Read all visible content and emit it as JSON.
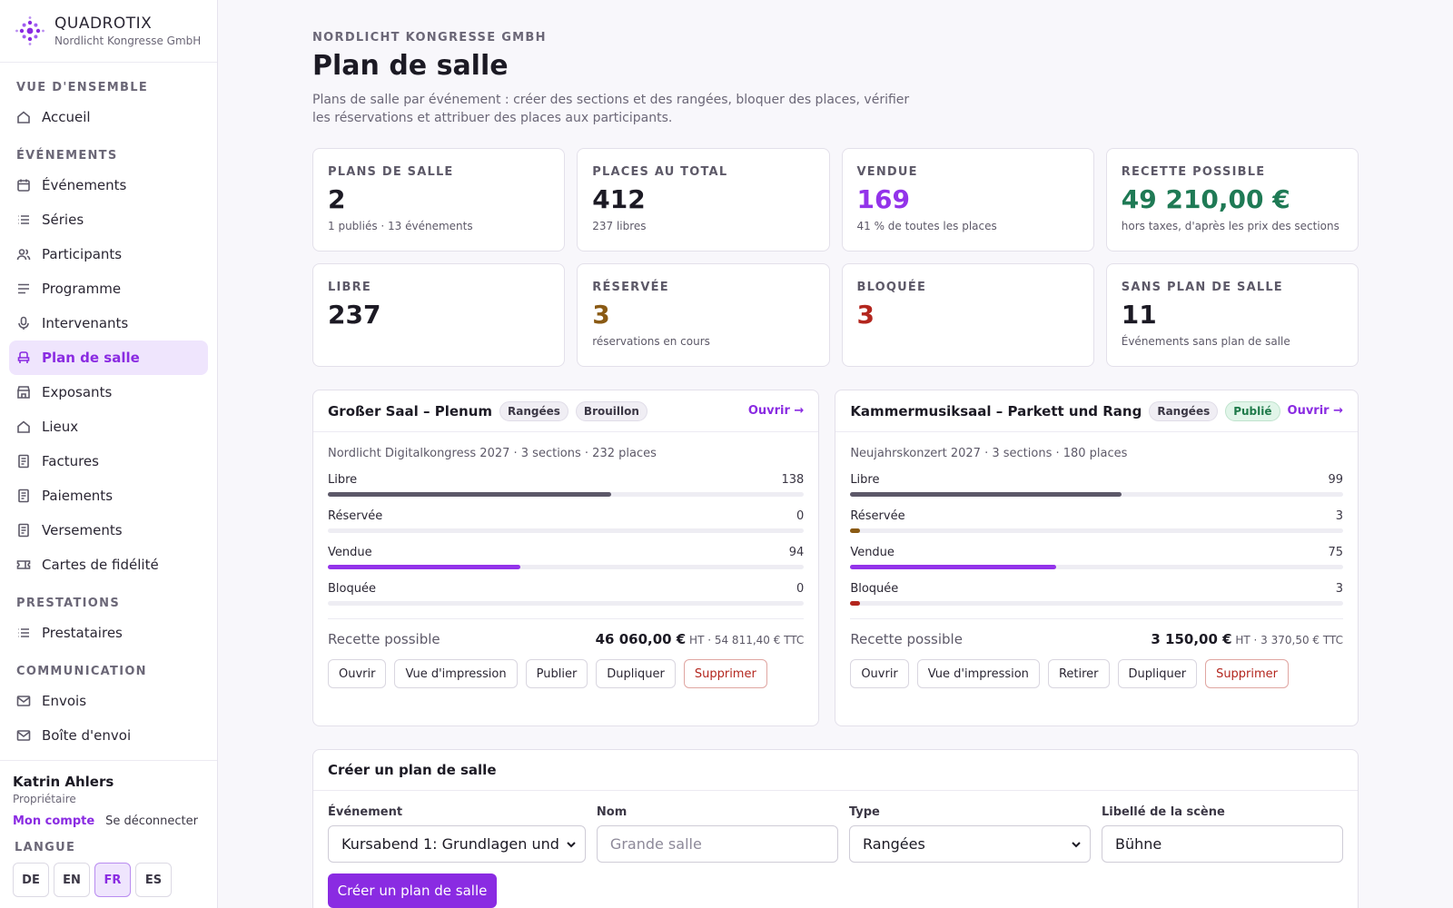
{
  "brand": {
    "name": "QUADROTIX",
    "org": "Nordlicht Kongresse GmbH",
    "logo_icon": "dots-cluster-logo"
  },
  "nav": {
    "sections": [
      {
        "title": "VUE D'ENSEMBLE",
        "items": [
          {
            "label": "Accueil",
            "icon": "home-icon"
          }
        ]
      },
      {
        "title": "ÉVÉNEMENTS",
        "items": [
          {
            "label": "Événements",
            "icon": "calendar-icon"
          },
          {
            "label": "Séries",
            "icon": "list-icon"
          },
          {
            "label": "Participants",
            "icon": "users-icon"
          },
          {
            "label": "Programme",
            "icon": "lines-icon"
          },
          {
            "label": "Intervenants",
            "icon": "mic-icon"
          },
          {
            "label": "Plan de salle",
            "icon": "seat-icon",
            "active": true
          },
          {
            "label": "Exposants",
            "icon": "store-icon"
          },
          {
            "label": "Lieux",
            "icon": "home-icon"
          },
          {
            "label": "Factures",
            "icon": "receipt-icon"
          },
          {
            "label": "Paiements",
            "icon": "receipt-icon"
          },
          {
            "label": "Versements",
            "icon": "receipt-icon"
          },
          {
            "label": "Cartes de fidélité",
            "icon": "ticket-icon"
          }
        ]
      },
      {
        "title": "PRESTATIONS",
        "items": [
          {
            "label": "Prestataires",
            "icon": "list-icon"
          }
        ]
      },
      {
        "title": "COMMUNICATION",
        "items": [
          {
            "label": "Envois",
            "icon": "mail-icon"
          },
          {
            "label": "Boîte d'envoi",
            "icon": "mail-icon"
          }
        ]
      }
    ]
  },
  "user": {
    "name": "Katrin Ahlers",
    "role": "Propriétaire",
    "account_link": "Mon compte",
    "logout_link": "Se déconnecter"
  },
  "language": {
    "title": "LANGUE",
    "options": [
      "DE",
      "EN",
      "FR",
      "ES"
    ],
    "selected": "FR"
  },
  "header": {
    "eyebrow": "NORDLICHT KONGRESSE GMBH",
    "title": "Plan de salle",
    "description": "Plans de salle par événement : créer des sections et des rangées, bloquer des places, vérifier les réservations et attribuer des places aux participants."
  },
  "stats": [
    {
      "label": "PLANS DE SALLE",
      "value": "2",
      "sub": "1 publiés · 13 événements",
      "color": "#1c1a24"
    },
    {
      "label": "PLACES AU TOTAL",
      "value": "412",
      "sub": "237 libres",
      "color": "#1c1a24"
    },
    {
      "label": "VENDUE",
      "value": "169",
      "sub": "41 % de toutes les places",
      "color": "#9333ea"
    },
    {
      "label": "RECETTE POSSIBLE",
      "value": "49 210,00 €",
      "sub": "hors taxes, d'après les prix des sections",
      "color": "#1f7a55"
    },
    {
      "label": "LIBRE",
      "value": "237",
      "sub": "",
      "color": "#1c1a24"
    },
    {
      "label": "RÉSERVÉE",
      "value": "3",
      "sub": "réservations en cours",
      "color": "#8a5a14"
    },
    {
      "label": "BLOQUÉE",
      "value": "3",
      "sub": "",
      "color": "#b3261e"
    },
    {
      "label": "SANS PLAN DE SALLE",
      "value": "11",
      "sub": "Événements sans plan de salle",
      "color": "#1c1a24"
    }
  ],
  "plans": [
    {
      "title": "Großer Saal – Plenum",
      "type_badge": "Rangées",
      "status_badge": "Brouillon",
      "status": "draft",
      "open_link": "Ouvrir →",
      "meta": "Nordlicht Digitalkongress 2027 · 3 sections · 232 places",
      "rows": [
        {
          "label": "Libre",
          "value": "138",
          "ratio": 0.595,
          "color": "#5c5868"
        },
        {
          "label": "Réservée",
          "value": "0",
          "ratio": 0,
          "color": "#8a5a14"
        },
        {
          "label": "Vendue",
          "value": "94",
          "ratio": 0.405,
          "color": "#9333ea"
        },
        {
          "label": "Bloquée",
          "value": "0",
          "ratio": 0,
          "color": "#b3261e"
        }
      ],
      "revenue_label": "Recette possible",
      "revenue_ht": "46 060,00 €",
      "revenue_rest": " HT · 54 811,40 € TTC",
      "actions": [
        "Ouvrir",
        "Vue d'impression",
        "Publier",
        "Dupliquer"
      ],
      "delete_label": "Supprimer"
    },
    {
      "title": "Kammermusiksaal – Parkett und Rang",
      "type_badge": "Rangées",
      "status_badge": "Publié",
      "status": "published",
      "open_link": "Ouvrir →",
      "meta": "Neujahrskonzert 2027 · 3 sections · 180 places",
      "rows": [
        {
          "label": "Libre",
          "value": "99",
          "ratio": 0.55,
          "color": "#5c5868"
        },
        {
          "label": "Réservée",
          "value": "3",
          "ratio": 0.017,
          "color": "#8a5a14"
        },
        {
          "label": "Vendue",
          "value": "75",
          "ratio": 0.417,
          "color": "#9333ea"
        },
        {
          "label": "Bloquée",
          "value": "3",
          "ratio": 0.017,
          "color": "#b3261e"
        }
      ],
      "revenue_label": "Recette possible",
      "revenue_ht": "3 150,00 €",
      "revenue_rest": " HT · 3 370,50 € TTC",
      "actions": [
        "Ouvrir",
        "Vue d'impression",
        "Retirer",
        "Dupliquer"
      ],
      "delete_label": "Supprimer"
    }
  ],
  "create_form": {
    "title": "Créer un plan de salle",
    "fields": {
      "event": {
        "label": "Événement",
        "value": "Kursabend 1: Grundlagen und"
      },
      "name": {
        "label": "Nom",
        "placeholder": "Grande salle",
        "value": ""
      },
      "type": {
        "label": "Type",
        "value": "Rangées"
      },
      "stage": {
        "label": "Libellé de la scène",
        "value": "Bühne"
      }
    },
    "submit_label": "Créer un plan de salle"
  },
  "colors": {
    "accent": "#8a2be2",
    "success": "#1f7a55",
    "danger": "#b3261e",
    "warning": "#8a5a14"
  }
}
